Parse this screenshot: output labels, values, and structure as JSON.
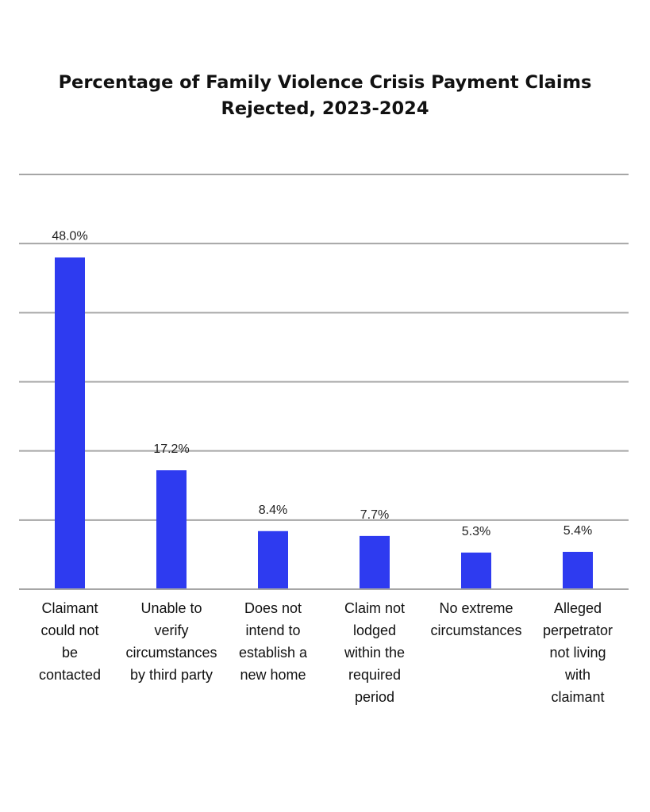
{
  "chart_data": {
    "type": "bar",
    "title_lines": [
      "Percentage of Family Violence Crisis Payment Claims",
      "Rejected, 2023-2024"
    ],
    "categories": [
      [
        "Claimant",
        "could not",
        "be",
        "contacted"
      ],
      [
        "Unable to",
        "verify",
        "circumstances",
        "by third party"
      ],
      [
        "Does not",
        "intend to",
        "establish a",
        "new home"
      ],
      [
        "Claim not",
        "lodged",
        "within the",
        "required",
        "period"
      ],
      [
        "No extreme",
        "circumstances"
      ],
      [
        "Alleged",
        "perpetrator",
        "not living",
        "with",
        "claimant"
      ]
    ],
    "values": [
      48.0,
      17.2,
      8.4,
      7.7,
      5.3,
      5.4
    ],
    "value_labels": [
      "48.0%",
      "17.2%",
      "8.4%",
      "7.7%",
      "5.3%",
      "5.4%"
    ],
    "ylim": [
      0,
      60
    ],
    "grid": true,
    "bar_color": "#2e3bf0",
    "grid_color": "#a6a6a6"
  }
}
